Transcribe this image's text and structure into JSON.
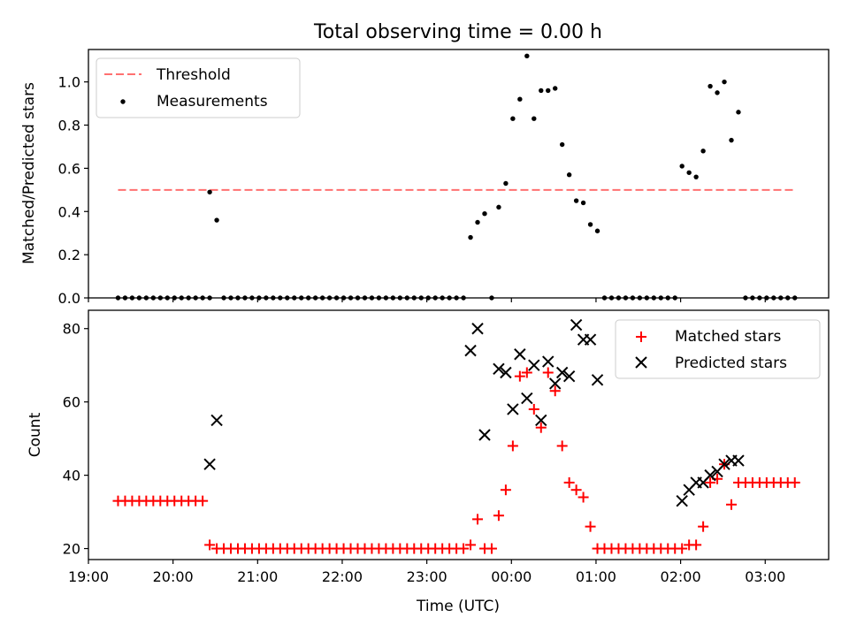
{
  "title": "Total observing time = 0.00 h",
  "colors": {
    "threshold": "#ff7070",
    "measurement": "#000000",
    "matched": "#ff0000",
    "predicted": "#000000"
  },
  "chart_data": [
    {
      "type": "scatter",
      "ylabel": "Matched/Predicted stars",
      "xlabel": "",
      "ylim": [
        0,
        1.15
      ],
      "xlim": [
        "19:00",
        "03:45"
      ],
      "yticks": [
        "0.0",
        "0.2",
        "0.4",
        "0.6",
        "0.8",
        "1.0"
      ],
      "legend_position": "top-left",
      "threshold": {
        "name": "Threshold",
        "value": 0.5,
        "x_range": [
          "19:21",
          "03:21"
        ]
      },
      "series": [
        {
          "name": "Measurements",
          "points": [
            [
              "19:21",
              0
            ],
            [
              "19:26",
              0
            ],
            [
              "19:31",
              0
            ],
            [
              "19:36",
              0
            ],
            [
              "19:41",
              0
            ],
            [
              "19:46",
              0
            ],
            [
              "19:51",
              0
            ],
            [
              "19:56",
              0
            ],
            [
              "20:01",
              0
            ],
            [
              "20:06",
              0
            ],
            [
              "20:11",
              0
            ],
            [
              "20:16",
              0
            ],
            [
              "20:21",
              0
            ],
            [
              "20:26",
              0
            ],
            [
              "20:26",
              0.49
            ],
            [
              "20:31",
              0.36
            ],
            [
              "20:36",
              0
            ],
            [
              "20:41",
              0
            ],
            [
              "20:46",
              0
            ],
            [
              "20:51",
              0
            ],
            [
              "20:56",
              0
            ],
            [
              "21:01",
              0
            ],
            [
              "21:06",
              0
            ],
            [
              "21:11",
              0
            ],
            [
              "21:16",
              0
            ],
            [
              "21:21",
              0
            ],
            [
              "21:26",
              0
            ],
            [
              "21:31",
              0
            ],
            [
              "21:36",
              0
            ],
            [
              "21:41",
              0
            ],
            [
              "21:46",
              0
            ],
            [
              "21:51",
              0
            ],
            [
              "21:56",
              0
            ],
            [
              "22:01",
              0
            ],
            [
              "22:06",
              0
            ],
            [
              "22:11",
              0
            ],
            [
              "22:16",
              0
            ],
            [
              "22:21",
              0
            ],
            [
              "22:26",
              0
            ],
            [
              "22:31",
              0
            ],
            [
              "22:36",
              0
            ],
            [
              "22:41",
              0
            ],
            [
              "22:46",
              0
            ],
            [
              "22:51",
              0
            ],
            [
              "22:56",
              0
            ],
            [
              "23:01",
              0
            ],
            [
              "23:06",
              0
            ],
            [
              "23:11",
              0
            ],
            [
              "23:16",
              0
            ],
            [
              "23:21",
              0
            ],
            [
              "23:26",
              0
            ],
            [
              "23:31",
              0.28
            ],
            [
              "23:36",
              0.35
            ],
            [
              "23:41",
              0.39
            ],
            [
              "23:46",
              0
            ],
            [
              "23:51",
              0.42
            ],
            [
              "23:56",
              0.53
            ],
            [
              "00:01",
              0.83
            ],
            [
              "00:06",
              0.92
            ],
            [
              "00:11",
              1.12
            ],
            [
              "00:16",
              0.83
            ],
            [
              "00:21",
              0.96
            ],
            [
              "00:26",
              0.96
            ],
            [
              "00:31",
              0.97
            ],
            [
              "00:36",
              0.71
            ],
            [
              "00:41",
              0.57
            ],
            [
              "00:46",
              0.45
            ],
            [
              "00:51",
              0.44
            ],
            [
              "00:56",
              0.34
            ],
            [
              "01:01",
              0.31
            ],
            [
              "01:06",
              0
            ],
            [
              "01:11",
              0
            ],
            [
              "01:16",
              0
            ],
            [
              "01:21",
              0
            ],
            [
              "01:26",
              0
            ],
            [
              "01:31",
              0
            ],
            [
              "01:36",
              0
            ],
            [
              "01:41",
              0
            ],
            [
              "01:46",
              0
            ],
            [
              "01:51",
              0
            ],
            [
              "01:56",
              0
            ],
            [
              "02:01",
              0.61
            ],
            [
              "02:06",
              0.58
            ],
            [
              "02:11",
              0.56
            ],
            [
              "02:16",
              0.68
            ],
            [
              "02:21",
              0.98
            ],
            [
              "02:26",
              0.95
            ],
            [
              "02:31",
              1.0
            ],
            [
              "02:36",
              0.73
            ],
            [
              "02:41",
              0.86
            ],
            [
              "02:46",
              0
            ],
            [
              "02:51",
              0
            ],
            [
              "02:56",
              0
            ],
            [
              "03:01",
              0
            ],
            [
              "03:06",
              0
            ],
            [
              "03:11",
              0
            ],
            [
              "03:16",
              0
            ],
            [
              "03:21",
              0
            ]
          ]
        }
      ]
    },
    {
      "type": "scatter",
      "ylabel": "Count",
      "xlabel": "Time (UTC)",
      "ylim": [
        17,
        85
      ],
      "xlim": [
        "19:00",
        "03:45"
      ],
      "yticks": [
        "20",
        "40",
        "60",
        "80"
      ],
      "xticks": [
        "19:00",
        "20:00",
        "21:00",
        "22:00",
        "23:00",
        "00:00",
        "01:00",
        "02:00",
        "03:00"
      ],
      "legend_position": "top-right",
      "series": [
        {
          "name": "Matched stars",
          "points": [
            [
              "19:21",
              33
            ],
            [
              "19:26",
              33
            ],
            [
              "19:31",
              33
            ],
            [
              "19:36",
              33
            ],
            [
              "19:41",
              33
            ],
            [
              "19:46",
              33
            ],
            [
              "19:51",
              33
            ],
            [
              "19:56",
              33
            ],
            [
              "20:01",
              33
            ],
            [
              "20:06",
              33
            ],
            [
              "20:11",
              33
            ],
            [
              "20:16",
              33
            ],
            [
              "20:21",
              33
            ],
            [
              "20:26",
              21
            ],
            [
              "20:31",
              20
            ],
            [
              "20:36",
              20
            ],
            [
              "20:41",
              20
            ],
            [
              "20:46",
              20
            ],
            [
              "20:51",
              20
            ],
            [
              "20:56",
              20
            ],
            [
              "21:01",
              20
            ],
            [
              "21:06",
              20
            ],
            [
              "21:11",
              20
            ],
            [
              "21:16",
              20
            ],
            [
              "21:21",
              20
            ],
            [
              "21:26",
              20
            ],
            [
              "21:31",
              20
            ],
            [
              "21:36",
              20
            ],
            [
              "21:41",
              20
            ],
            [
              "21:46",
              20
            ],
            [
              "21:51",
              20
            ],
            [
              "21:56",
              20
            ],
            [
              "22:01",
              20
            ],
            [
              "22:06",
              20
            ],
            [
              "22:11",
              20
            ],
            [
              "22:16",
              20
            ],
            [
              "22:21",
              20
            ],
            [
              "22:26",
              20
            ],
            [
              "22:31",
              20
            ],
            [
              "22:36",
              20
            ],
            [
              "22:41",
              20
            ],
            [
              "22:46",
              20
            ],
            [
              "22:51",
              20
            ],
            [
              "22:56",
              20
            ],
            [
              "23:01",
              20
            ],
            [
              "23:06",
              20
            ],
            [
              "23:11",
              20
            ],
            [
              "23:16",
              20
            ],
            [
              "23:21",
              20
            ],
            [
              "23:26",
              20
            ],
            [
              "23:31",
              21
            ],
            [
              "23:36",
              28
            ],
            [
              "23:41",
              20
            ],
            [
              "23:46",
              20
            ],
            [
              "23:51",
              29
            ],
            [
              "23:56",
              36
            ],
            [
              "00:01",
              48
            ],
            [
              "00:06",
              67
            ],
            [
              "00:11",
              68
            ],
            [
              "00:16",
              58
            ],
            [
              "00:21",
              53
            ],
            [
              "00:26",
              68
            ],
            [
              "00:31",
              63
            ],
            [
              "00:36",
              48
            ],
            [
              "00:41",
              38
            ],
            [
              "00:46",
              36
            ],
            [
              "00:51",
              34
            ],
            [
              "00:56",
              26
            ],
            [
              "01:01",
              20
            ],
            [
              "01:06",
              20
            ],
            [
              "01:11",
              20
            ],
            [
              "01:16",
              20
            ],
            [
              "01:21",
              20
            ],
            [
              "01:26",
              20
            ],
            [
              "01:31",
              20
            ],
            [
              "01:36",
              20
            ],
            [
              "01:41",
              20
            ],
            [
              "01:46",
              20
            ],
            [
              "01:51",
              20
            ],
            [
              "01:56",
              20
            ],
            [
              "02:01",
              20
            ],
            [
              "02:06",
              21
            ],
            [
              "02:11",
              21
            ],
            [
              "02:16",
              26
            ],
            [
              "02:21",
              38
            ],
            [
              "02:26",
              39
            ],
            [
              "02:31",
              43
            ],
            [
              "02:36",
              32
            ],
            [
              "02:41",
              38
            ],
            [
              "02:46",
              38
            ],
            [
              "02:51",
              38
            ],
            [
              "02:56",
              38
            ],
            [
              "03:01",
              38
            ],
            [
              "03:06",
              38
            ],
            [
              "03:11",
              38
            ],
            [
              "03:16",
              38
            ],
            [
              "03:21",
              38
            ]
          ]
        },
        {
          "name": "Predicted stars",
          "points": [
            [
              "20:26",
              43
            ],
            [
              "20:31",
              55
            ],
            [
              "23:31",
              74
            ],
            [
              "23:36",
              80
            ],
            [
              "23:41",
              51
            ],
            [
              "23:51",
              69
            ],
            [
              "23:56",
              68
            ],
            [
              "00:01",
              58
            ],
            [
              "00:06",
              73
            ],
            [
              "00:11",
              61
            ],
            [
              "00:16",
              70
            ],
            [
              "00:21",
              55
            ],
            [
              "00:26",
              71
            ],
            [
              "00:31",
              65
            ],
            [
              "00:36",
              68
            ],
            [
              "00:41",
              67
            ],
            [
              "00:46",
              81
            ],
            [
              "00:51",
              77
            ],
            [
              "00:56",
              77
            ],
            [
              "01:01",
              66
            ],
            [
              "02:01",
              33
            ],
            [
              "02:06",
              36
            ],
            [
              "02:11",
              38
            ],
            [
              "02:16",
              38
            ],
            [
              "02:21",
              40
            ],
            [
              "02:26",
              41
            ],
            [
              "02:31",
              43
            ],
            [
              "02:36",
              44
            ],
            [
              "02:41",
              44
            ]
          ]
        }
      ]
    }
  ]
}
